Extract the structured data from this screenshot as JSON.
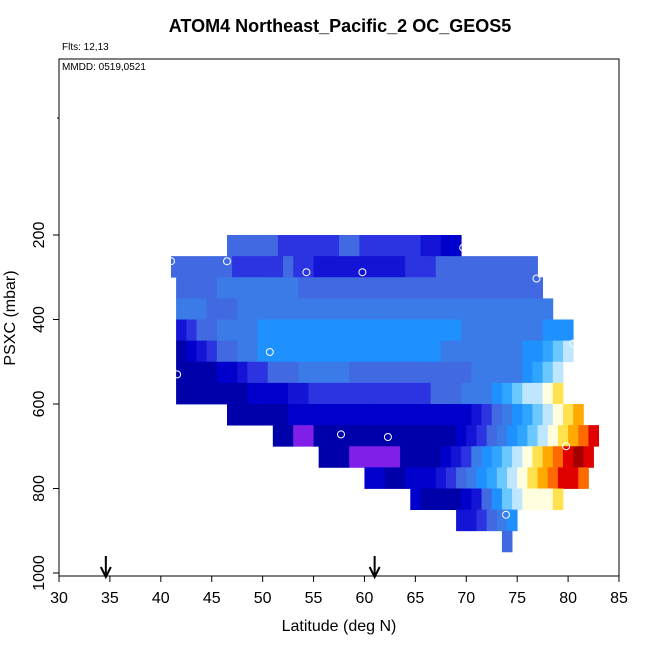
{
  "chart_data": {
    "type": "heatmap",
    "title": "ATOM4 Northeast_Pacific_2 OC_GEOS5",
    "subtitle": "Flts: 12,13",
    "note": "MMDD: 0519,0521",
    "xlabel": "Latitude (deg N)",
    "ylabel": "PSXC (mbar)",
    "xlim": [
      30,
      85
    ],
    "ylim": [
      1000,
      0
    ],
    "y_reversed": true,
    "grid": false,
    "legend": "none",
    "xticks": [
      30,
      35,
      40,
      45,
      50,
      55,
      60,
      65,
      70,
      75,
      80,
      85
    ],
    "yticks": [
      200,
      400,
      600,
      800,
      1000
    ],
    "lat_step": 1,
    "palette": [
      "#0000aa",
      "#0000cd",
      "#1414d7",
      "#2b34e0",
      "#4169e1",
      "#3a7be8",
      "#1e90ff",
      "#2fa5ff",
      "#6ac8ff",
      "#bfe6ff",
      "#ffffe0",
      "#ffe24d",
      "#ffaa00",
      "#ff6a00",
      "#e00000",
      "#a50000"
    ],
    "special_color": "#7f1fe8",
    "color_scale_note": "cell value = palette index (0 low .. 15 high); -1 = violet",
    "rows": [
      {
        "p0": 200,
        "p1": 250,
        "lat0": 46.5,
        "values": [
          4,
          4,
          4,
          4,
          4,
          3,
          3,
          3,
          3,
          3,
          3,
          4,
          4,
          3,
          3,
          3,
          3,
          3,
          3,
          2,
          2,
          1,
          1
        ]
      },
      {
        "p0": 250,
        "p1": 300,
        "lat0": 41,
        "values": [
          4,
          4,
          4,
          4,
          4,
          4,
          3,
          3,
          3,
          3,
          3,
          4,
          3,
          3,
          2,
          2,
          2,
          2,
          2,
          2,
          2,
          2,
          2,
          3,
          3,
          3,
          4,
          4,
          4,
          4,
          4,
          4,
          4,
          4,
          4,
          4
        ]
      },
      {
        "p0": 300,
        "p1": 350,
        "lat0": 41.5,
        "values": [
          4,
          4,
          4,
          4,
          5,
          5,
          5,
          5,
          5,
          5,
          5,
          5,
          4,
          4,
          4,
          4,
          4,
          4,
          4,
          4,
          4,
          4,
          4,
          4,
          4,
          4,
          4,
          4,
          4,
          4,
          4,
          4,
          4,
          4,
          4,
          4
        ]
      },
      {
        "p0": 350,
        "p1": 400,
        "lat0": 41.5,
        "values": [
          5,
          5,
          5,
          4,
          4,
          4,
          5,
          5,
          5,
          5,
          5,
          5,
          5,
          5,
          5,
          5,
          5,
          5,
          5,
          5,
          5,
          5,
          5,
          5,
          5,
          5,
          5,
          5,
          5,
          5,
          5,
          5,
          5,
          5,
          5,
          5,
          5
        ]
      },
      {
        "p0": 400,
        "p1": 450,
        "lat0": 41.5,
        "values": [
          2,
          3,
          4,
          4,
          5,
          5,
          5,
          5,
          6,
          6,
          6,
          6,
          6,
          6,
          6,
          6,
          6,
          6,
          6,
          6,
          6,
          6,
          6,
          6,
          6,
          6,
          6,
          6,
          5,
          5,
          5,
          5,
          5,
          5,
          5,
          5,
          6,
          6,
          6
        ]
      },
      {
        "p0": 450,
        "p1": 500,
        "lat0": 41.5,
        "values": [
          0,
          1,
          2,
          3,
          4,
          4,
          5,
          5,
          6,
          6,
          6,
          6,
          6,
          6,
          6,
          6,
          6,
          6,
          6,
          6,
          6,
          6,
          6,
          6,
          6,
          6,
          5,
          5,
          5,
          5,
          5,
          5,
          5,
          5,
          6,
          6,
          7,
          8,
          9
        ]
      },
      {
        "p0": 500,
        "p1": 550,
        "lat0": 41.5,
        "values": [
          0,
          0,
          0,
          0,
          1,
          1,
          2,
          3,
          3,
          4,
          4,
          4,
          5,
          5,
          5,
          5,
          5,
          4,
          4,
          4,
          4,
          4,
          4,
          4,
          4,
          4,
          4,
          4,
          4,
          5,
          5,
          5,
          5,
          5,
          6,
          7,
          8,
          9
        ]
      },
      {
        "p0": 550,
        "p1": 600,
        "lat0": 41.5,
        "values": [
          0,
          0,
          0,
          0,
          0,
          0,
          0,
          1,
          1,
          1,
          1,
          2,
          2,
          3,
          3,
          3,
          3,
          3,
          3,
          3,
          3,
          3,
          3,
          3,
          3,
          4,
          4,
          4,
          5,
          5,
          5,
          6,
          7,
          8,
          9,
          9,
          10,
          11
        ]
      },
      {
        "p0": 600,
        "p1": 650,
        "lat0": 46.5,
        "values": [
          0,
          0,
          0,
          0,
          0,
          0,
          1,
          1,
          1,
          1,
          1,
          1,
          1,
          1,
          1,
          1,
          1,
          1,
          1,
          1,
          1,
          1,
          1,
          1,
          2,
          3,
          4,
          5,
          6,
          7,
          8,
          9,
          10,
          11,
          12
        ]
      },
      {
        "p0": 650,
        "p1": 700,
        "lat0": 51,
        "values": [
          0,
          0,
          -1,
          -1,
          0,
          0,
          0,
          0,
          0,
          0,
          0,
          0,
          0,
          0,
          0,
          0,
          0,
          0,
          1,
          2,
          3,
          4,
          5,
          6,
          7,
          8,
          9,
          10,
          11,
          12,
          13,
          14
        ]
      },
      {
        "p0": 700,
        "p1": 750,
        "lat0": 55.5,
        "values": [
          0,
          0,
          0,
          -1,
          -1,
          -1,
          -1,
          -1,
          0,
          0,
          0,
          0,
          1,
          2,
          3,
          5,
          6,
          7,
          8,
          9,
          10,
          11,
          12,
          13,
          14,
          15,
          14
        ]
      },
      {
        "p0": 750,
        "p1": 800,
        "lat0": 60,
        "values": [
          1,
          1,
          0,
          0,
          1,
          1,
          1,
          2,
          3,
          4,
          5,
          6,
          7,
          8,
          9,
          10,
          11,
          12,
          13,
          14,
          14,
          13
        ]
      },
      {
        "p0": 800,
        "p1": 850,
        "lat0": 64.5,
        "values": [
          1,
          0,
          0,
          0,
          0,
          1,
          2,
          4,
          6,
          8,
          9,
          10,
          10,
          10,
          11
        ]
      },
      {
        "p0": 850,
        "p1": 900,
        "lat0": 69,
        "values": [
          2,
          2,
          3,
          4,
          5,
          6
        ]
      },
      {
        "p0": 900,
        "p1": 950,
        "lat0": 73.5,
        "values": [
          4
        ]
      }
    ],
    "markers": [
      {
        "lat": 69.7,
        "p": 230
      },
      {
        "lat": 46.5,
        "p": 262
      },
      {
        "lat": 41.0,
        "p": 262
      },
      {
        "lat": 54.3,
        "p": 288
      },
      {
        "lat": 59.8,
        "p": 288
      },
      {
        "lat": 76.9,
        "p": 303
      },
      {
        "lat": 80.5,
        "p": 457
      },
      {
        "lat": 50.7,
        "p": 477
      },
      {
        "lat": 41.6,
        "p": 530
      },
      {
        "lat": 57.7,
        "p": 672
      },
      {
        "lat": 62.3,
        "p": 678
      },
      {
        "lat": 79.8,
        "p": 700
      },
      {
        "lat": 73.9,
        "p": 862
      }
    ],
    "flight_arrows_lat": [
      34.6,
      61.0
    ]
  }
}
